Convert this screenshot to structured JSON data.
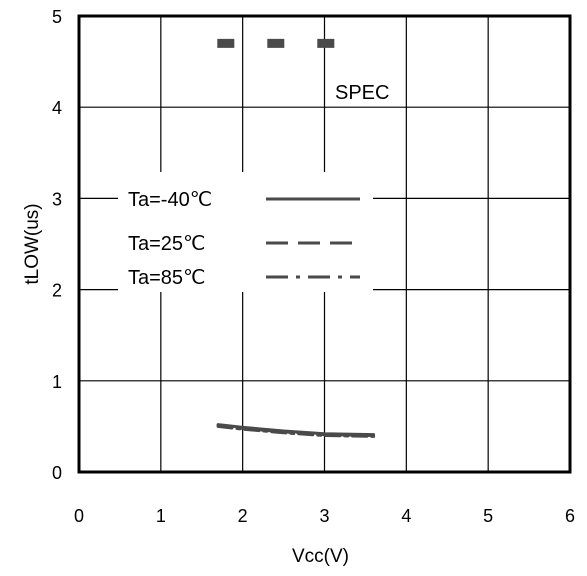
{
  "chart_data": {
    "type": "line",
    "xlabel": "Vcc(V)",
    "ylabel": "tLOW(us)",
    "xlim": [
      0,
      6
    ],
    "ylim": [
      0,
      5
    ],
    "xticks": [
      0,
      1,
      2,
      3,
      4,
      5,
      6
    ],
    "yticks": [
      0,
      1,
      2,
      3,
      4,
      5
    ],
    "grid": true,
    "legend": {
      "placement": "center-left",
      "entries": [
        {
          "label": "Ta=-40℃",
          "style": "solid"
        },
        {
          "label": "Ta=25℃",
          "style": "dashed"
        },
        {
          "label": "Ta=85℃",
          "style": "dashdot"
        }
      ]
    },
    "spec": {
      "label": "SPEC",
      "x": [
        1.8,
        3.2
      ],
      "y": 4.7,
      "style": "dashed-thick"
    },
    "series": [
      {
        "style": "solid",
        "x": [
          1.7,
          2.0,
          2.5,
          3.0,
          3.6
        ],
        "y": [
          0.52,
          0.49,
          0.45,
          0.42,
          0.41
        ]
      },
      {
        "style": "dashed",
        "x": [
          1.7,
          2.0,
          2.5,
          3.0,
          3.6
        ],
        "y": [
          0.51,
          0.48,
          0.44,
          0.41,
          0.4
        ]
      },
      {
        "style": "dashdot",
        "x": [
          1.7,
          2.0,
          2.5,
          3.0,
          3.6
        ],
        "y": [
          0.5,
          0.47,
          0.43,
          0.4,
          0.39
        ]
      }
    ],
    "colors": {
      "line": "#4a4a4a",
      "spec": "#4a4a4a",
      "axis": "#000000",
      "grid": "#000000"
    }
  }
}
